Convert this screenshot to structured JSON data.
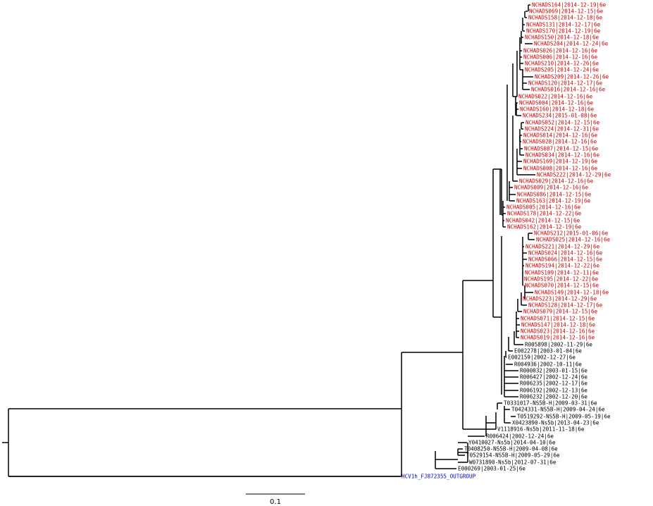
{
  "colors": {
    "branch": "#000000",
    "highlight_tip": "#cc0000",
    "reference_tip": "#000000",
    "outgroup_tip": "#0000cc"
  },
  "scale_bar": {
    "label": "0.1"
  },
  "tips": [
    {
      "label": "NCHADS164|2014-12-19|6e",
      "group": "highlight"
    },
    {
      "label": "NCHADS069|2014-12-15|6e",
      "group": "highlight"
    },
    {
      "label": "NCHADS158|2014-12-18|6e",
      "group": "highlight"
    },
    {
      "label": "NCHADS131|2014-12-17|6e",
      "group": "highlight"
    },
    {
      "label": "NCHADS170|2014-12-19|6e",
      "group": "highlight"
    },
    {
      "label": "NCHADS150|2014-12-18|6e",
      "group": "highlight"
    },
    {
      "label": "NCHADS204|2014-12-24|6e",
      "group": "highlight"
    },
    {
      "label": "NCHADS026|2014-12-16|6e",
      "group": "highlight"
    },
    {
      "label": "NCHADS006|2014-12-16|6e",
      "group": "highlight"
    },
    {
      "label": "NCHADS210|2014-12-26|6e",
      "group": "highlight"
    },
    {
      "label": "NCHADS205|2014-12-24|6e",
      "group": "highlight"
    },
    {
      "label": "NCHADS209|2014-12-26|6e",
      "group": "highlight"
    },
    {
      "label": "NCHADS120|2014-12-17|6e",
      "group": "highlight"
    },
    {
      "label": "NCHADS016|2014-12-16|6e",
      "group": "highlight"
    },
    {
      "label": "NCHADS022|2014-12-16|6e",
      "group": "highlight"
    },
    {
      "label": "NCHADS004|2014-12-16|6e",
      "group": "highlight"
    },
    {
      "label": "NCHADS160|2014-12-18|6e",
      "group": "highlight"
    },
    {
      "label": "NCHADS234|2015-01-08|6e",
      "group": "highlight"
    },
    {
      "label": "NCHADS052|2014-12-15|6e",
      "group": "highlight"
    },
    {
      "label": "NCHADS224|2014-12-31|6e",
      "group": "highlight"
    },
    {
      "label": "NCHADS014|2014-12-16|6e",
      "group": "highlight"
    },
    {
      "label": "NCHADS028|2014-12-16|6e",
      "group": "highlight"
    },
    {
      "label": "NCHADS087|2014-12-15|6e",
      "group": "highlight"
    },
    {
      "label": "NCHADS034|2014-12-16|6e",
      "group": "highlight"
    },
    {
      "label": "NCHADS169|2014-12-19|6e",
      "group": "highlight"
    },
    {
      "label": "NCHADS008|2014-12-16|6e",
      "group": "highlight"
    },
    {
      "label": "NCHADS222|2014-12-29|6e",
      "group": "highlight"
    },
    {
      "label": "NCHADS029|2014-12-16|6e",
      "group": "highlight"
    },
    {
      "label": "NCHADS009|2014-12-16|6e",
      "group": "highlight"
    },
    {
      "label": "NCHADS086|2014-12-15|6e",
      "group": "highlight"
    },
    {
      "label": "NCHADS163|2014-12-19|6e",
      "group": "highlight"
    },
    {
      "label": "NCHADS005|2014-12-16|6e",
      "group": "highlight"
    },
    {
      "label": "NCHADS178|2014-12-22|6e",
      "group": "highlight"
    },
    {
      "label": "NCHADS042|2014-12-15|6e",
      "group": "highlight"
    },
    {
      "label": "NCHADS162|2014-12-19|6e",
      "group": "highlight"
    },
    {
      "label": "NCHADS212|2015-01-06|6e",
      "group": "highlight"
    },
    {
      "label": "NCHADS025|2014-12-16|6e",
      "group": "highlight"
    },
    {
      "label": "NCHADS221|2014-12-29|6e",
      "group": "highlight"
    },
    {
      "label": "NCHADS024|2014-12-16|6e",
      "group": "highlight"
    },
    {
      "label": "NCHADS066|2014-12-15|6e",
      "group": "highlight"
    },
    {
      "label": "NCHADS194|2014-12-22|6e",
      "group": "highlight"
    },
    {
      "label": "NCHADS109|2014-12-11|6e",
      "group": "highlight"
    },
    {
      "label": "NCHADS195|2014-12-22|6e",
      "group": "highlight"
    },
    {
      "label": "NCHADS070|2014-12-15|6e",
      "group": "highlight"
    },
    {
      "label": "NCHADS149|2014-12-18|6e",
      "group": "highlight"
    },
    {
      "label": "NCHADS223|2014-12-29|6e",
      "group": "highlight"
    },
    {
      "label": "NCHADS128|2014-12-17|6e",
      "group": "highlight"
    },
    {
      "label": "NCHADS079|2014-12-15|6e",
      "group": "highlight"
    },
    {
      "label": "NCHADS071|2014-12-15|6e",
      "group": "highlight"
    },
    {
      "label": "NCHADS147|2014-12-18|6e",
      "group": "highlight"
    },
    {
      "label": "NCHADS023|2014-12-16|6e",
      "group": "highlight"
    },
    {
      "label": "NCHADS019|2014-12-16|6e",
      "group": "highlight"
    },
    {
      "label": "R005898|2002-11-29|6e",
      "group": "reference"
    },
    {
      "label": "E002278|2003-01-04|6e",
      "group": "reference"
    },
    {
      "label": "E002159|2002-12-27|6e",
      "group": "reference"
    },
    {
      "label": "R004936|2002-10-11|6e",
      "group": "reference"
    },
    {
      "label": "R000032|2003-01-15|6e",
      "group": "reference"
    },
    {
      "label": "R006427|2002-12-24|6e",
      "group": "reference"
    },
    {
      "label": "R006235|2002-12-17|6e",
      "group": "reference"
    },
    {
      "label": "R006192|2002-12-13|6e",
      "group": "reference"
    },
    {
      "label": "R006232|2002-12-20|6e",
      "group": "reference"
    },
    {
      "label": "T0331017-NS5B-H|2009-03-31|6e",
      "group": "reference"
    },
    {
      "label": "T0424331-NS5B-H|2009-04-24|6e",
      "group": "reference"
    },
    {
      "label": "T0519292-NS5B-H|2009-05-19|6e",
      "group": "reference"
    },
    {
      "label": "X0423890-Ns5b|2013-04-23|6e",
      "group": "reference"
    },
    {
      "label": "V1118916-Ns5b|2011-11-18|6e",
      "group": "reference"
    },
    {
      "label": "R006424|2002-12-24|6e",
      "group": "reference"
    },
    {
      "label": "Y0410027-Ns5b|2014-04-10|6e",
      "group": "reference"
    },
    {
      "label": "T0408250-NS5B-H|2009-04-08|6e",
      "group": "reference"
    },
    {
      "label": "T0529154-NS5B-H|2009-05-29|6e",
      "group": "reference"
    },
    {
      "label": "W0731890-Ns5b|2012-07-31|6e",
      "group": "reference"
    },
    {
      "label": "E000269|2003-01-25|6e",
      "group": "reference"
    },
    {
      "label": "HCV1h_FJ872355_OUTGROUP",
      "group": "outgroup"
    }
  ]
}
